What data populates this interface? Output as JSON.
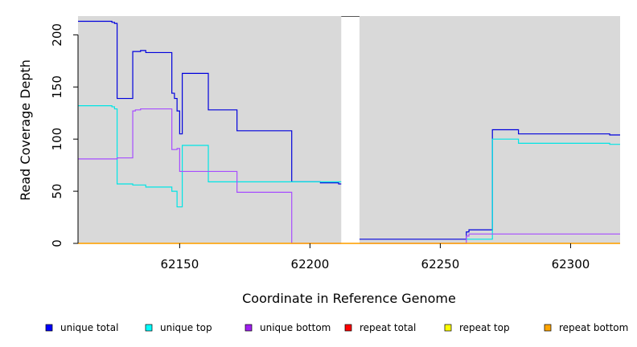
{
  "chart_data": {
    "type": "line",
    "title": "",
    "xlabel": "Coordinate in Reference Genome",
    "ylabel": "Read Coverage Depth",
    "xlim": [
      62111,
      62319
    ],
    "ylim": [
      0,
      218
    ],
    "x_ticks": [
      62150,
      62200,
      62250,
      62300
    ],
    "y_ticks": [
      0,
      50,
      100,
      150,
      200
    ],
    "grid": false,
    "background_color": "#d9d9d9",
    "gap_regions": [
      [
        62212,
        62219
      ]
    ],
    "legend_position": "bottom",
    "series": [
      {
        "name": "unique total",
        "color": "#0000dd",
        "points": [
          [
            62111,
            213
          ],
          [
            62124,
            213
          ],
          [
            62124,
            212
          ],
          [
            62125,
            212
          ],
          [
            62125,
            211
          ],
          [
            62126,
            211
          ],
          [
            62126,
            139
          ],
          [
            62132,
            139
          ],
          [
            62132,
            184
          ],
          [
            62135,
            184
          ],
          [
            62135,
            185
          ],
          [
            62137,
            185
          ],
          [
            62137,
            183
          ],
          [
            62147,
            183
          ],
          [
            62147,
            144
          ],
          [
            62148,
            144
          ],
          [
            62148,
            139
          ],
          [
            62149,
            139
          ],
          [
            62149,
            127
          ],
          [
            62150,
            127
          ],
          [
            62150,
            105
          ],
          [
            62151,
            105
          ],
          [
            62151,
            163
          ],
          [
            62161,
            163
          ],
          [
            62161,
            128
          ],
          [
            62172,
            128
          ],
          [
            62172,
            108
          ],
          [
            62193,
            108
          ],
          [
            62193,
            59
          ],
          [
            62204,
            59
          ],
          [
            62204,
            58
          ],
          [
            62211,
            58
          ],
          [
            62211,
            57
          ],
          [
            62212,
            57
          ]
        ]
      },
      {
        "name": "unique total",
        "color": "#0000dd",
        "points": [
          [
            62219,
            4
          ],
          [
            62260,
            4
          ],
          [
            62260,
            11
          ],
          [
            62261,
            11
          ],
          [
            62261,
            13
          ],
          [
            62270,
            13
          ],
          [
            62270,
            109
          ],
          [
            62280,
            109
          ],
          [
            62280,
            105
          ],
          [
            62315,
            105
          ],
          [
            62315,
            104
          ],
          [
            62319,
            104
          ]
        ]
      },
      {
        "name": "unique top",
        "color": "#00e5e5",
        "points": [
          [
            62111,
            132
          ],
          [
            62124,
            132
          ],
          [
            62124,
            131
          ],
          [
            62125,
            131
          ],
          [
            62125,
            129
          ],
          [
            62126,
            129
          ],
          [
            62126,
            57
          ],
          [
            62132,
            57
          ],
          [
            62132,
            56
          ],
          [
            62137,
            56
          ],
          [
            62137,
            54
          ],
          [
            62147,
            54
          ],
          [
            62147,
            50
          ],
          [
            62149,
            50
          ],
          [
            62149,
            35
          ],
          [
            62151,
            35
          ],
          [
            62151,
            94
          ],
          [
            62161,
            94
          ],
          [
            62161,
            59
          ],
          [
            62212,
            59
          ]
        ]
      },
      {
        "name": "unique top",
        "color": "#00e5e5",
        "points": [
          [
            62260,
            4
          ],
          [
            62270,
            4
          ],
          [
            62270,
            100
          ],
          [
            62280,
            100
          ],
          [
            62280,
            96
          ],
          [
            62315,
            96
          ],
          [
            62315,
            95
          ],
          [
            62319,
            95
          ]
        ]
      },
      {
        "name": "unique bottom",
        "color": "#a64dff",
        "points": [
          [
            62111,
            81
          ],
          [
            62126,
            81
          ],
          [
            62126,
            82
          ],
          [
            62132,
            82
          ],
          [
            62132,
            127
          ],
          [
            62133,
            127
          ],
          [
            62133,
            128
          ],
          [
            62135,
            128
          ],
          [
            62135,
            129
          ],
          [
            62147,
            129
          ],
          [
            62147,
            90
          ],
          [
            62149,
            90
          ],
          [
            62149,
            91
          ],
          [
            62150,
            91
          ],
          [
            62150,
            69
          ],
          [
            62172,
            69
          ],
          [
            62172,
            49
          ],
          [
            62193,
            49
          ],
          [
            62193,
            0
          ],
          [
            62212,
            0
          ]
        ]
      },
      {
        "name": "unique bottom",
        "color": "#a64dff",
        "points": [
          [
            62219,
            0
          ],
          [
            62260,
            0
          ],
          [
            62260,
            7
          ],
          [
            62261,
            7
          ],
          [
            62261,
            9
          ],
          [
            62319,
            9
          ]
        ]
      },
      {
        "name": "repeat total",
        "color": "#ff0000",
        "points": [
          [
            62111,
            0
          ],
          [
            62319,
            0
          ]
        ]
      },
      {
        "name": "repeat top",
        "color": "#ffff00",
        "points": [
          [
            62111,
            0
          ],
          [
            62319,
            0
          ]
        ]
      },
      {
        "name": "repeat bottom",
        "color": "#ffa500",
        "points": [
          [
            62111,
            0
          ],
          [
            62319,
            0
          ]
        ]
      }
    ],
    "legend": [
      {
        "label": "unique total",
        "color": "#0000ff"
      },
      {
        "label": "unique top",
        "color": "#00ffff"
      },
      {
        "label": "unique bottom",
        "color": "#a020f0"
      },
      {
        "label": "repeat total",
        "color": "#ff0000"
      },
      {
        "label": "repeat top",
        "color": "#ffff00"
      },
      {
        "label": "repeat bottom",
        "color": "#ffa500"
      }
    ]
  }
}
